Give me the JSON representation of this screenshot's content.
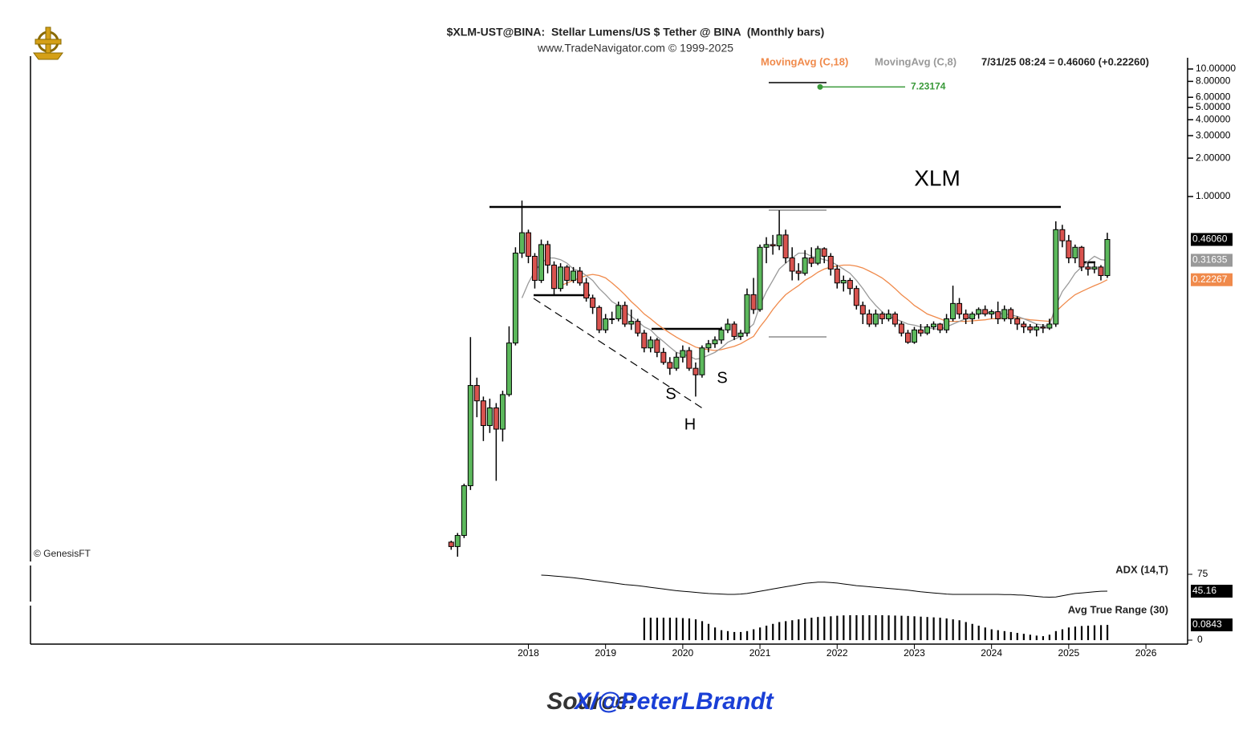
{
  "chart_data": {
    "type": "candlestick",
    "title": "$XLM-UST@BINA:  Stellar Lumens/US $ Tether @ BINA  (Monthly bars)",
    "subtitle": "www.TradeNavigator.com © 1999-2025",
    "status": "7/31/25 08:24 = 0.46060 (+0.22260)",
    "watermark": "© GenesisFT",
    "annotations": [
      "XLM",
      "S",
      "H",
      "S"
    ],
    "log_scale": true,
    "grid": false,
    "up_color": "#5cb85c",
    "down_color": "#d9534f",
    "xlim": [
      2011.55,
      2026.54
    ],
    "xticks": [
      2018,
      2019,
      2020,
      2021,
      2022,
      2023,
      2024,
      2025,
      2026
    ],
    "ylim": [
      0.001375,
      12.25
    ],
    "yticks": [
      {
        "value": 10,
        "label": "10.00000"
      },
      {
        "value": 8,
        "label": "8.00000"
      },
      {
        "value": 6,
        "label": "6.00000"
      },
      {
        "value": 5,
        "label": "5.00000"
      },
      {
        "value": 4,
        "label": "4.00000"
      },
      {
        "value": 3,
        "label": "3.00000"
      },
      {
        "value": 2,
        "label": "2.00000"
      },
      {
        "value": 1,
        "label": "1.00000"
      }
    ],
    "resistance": 0.828,
    "target": {
      "value": 7.23174,
      "color": "#3a9a3a"
    },
    "last_label": "0.46060",
    "x": [
      2017,
      2017.083,
      2017.167,
      2017.25,
      2017.333,
      2017.417,
      2017.5,
      2017.583,
      2017.667,
      2017.75,
      2017.833,
      2017.917,
      2018,
      2018.083,
      2018.167,
      2018.25,
      2018.333,
      2018.417,
      2018.5,
      2018.583,
      2018.667,
      2018.75,
      2018.833,
      2018.917,
      2019,
      2019.083,
      2019.167,
      2019.25,
      2019.333,
      2019.417,
      2019.5,
      2019.583,
      2019.667,
      2019.75,
      2019.833,
      2019.917,
      2020,
      2020.083,
      2020.167,
      2020.25,
      2020.333,
      2020.417,
      2020.5,
      2020.583,
      2020.667,
      2020.75,
      2020.833,
      2020.917,
      2021,
      2021.083,
      2021.167,
      2021.25,
      2021.333,
      2021.417,
      2021.5,
      2021.583,
      2021.667,
      2021.75,
      2021.833,
      2021.917,
      2022,
      2022.083,
      2022.167,
      2022.25,
      2022.333,
      2022.417,
      2022.5,
      2022.583,
      2022.667,
      2022.75,
      2022.833,
      2022.917,
      2023,
      2023.083,
      2023.167,
      2023.25,
      2023.333,
      2023.417,
      2023.5,
      2023.583,
      2023.667,
      2023.75,
      2023.833,
      2023.917,
      2024,
      2024.083,
      2024.167,
      2024.25,
      2024.333,
      2024.417,
      2024.5,
      2024.583,
      2024.667,
      2024.75,
      2024.833,
      2024.917,
      2025,
      2025.083,
      2025.167,
      2025.25,
      2025.333,
      2025.417,
      2025.5
    ],
    "ohlc": [
      [
        0.00195,
        0.002,
        0.0017,
        0.0018
      ],
      [
        0.0018,
        0.0023,
        0.0015,
        0.0022
      ],
      [
        0.0022,
        0.0056,
        0.0021,
        0.0054
      ],
      [
        0.0054,
        0.079,
        0.005,
        0.033
      ],
      [
        0.033,
        0.038,
        0.0186,
        0.025
      ],
      [
        0.025,
        0.027,
        0.0121,
        0.016
      ],
      [
        0.016,
        0.026,
        0.014,
        0.022
      ],
      [
        0.022,
        0.024,
        0.0059,
        0.015
      ],
      [
        0.015,
        0.03,
        0.012,
        0.028
      ],
      [
        0.028,
        0.096,
        0.027,
        0.071
      ],
      [
        0.071,
        0.4,
        0.068,
        0.36
      ],
      [
        0.36,
        0.93,
        0.33,
        0.52
      ],
      [
        0.52,
        0.55,
        0.3,
        0.34
      ],
      [
        0.34,
        0.36,
        0.19,
        0.22
      ],
      [
        0.22,
        0.46,
        0.21,
        0.42
      ],
      [
        0.42,
        0.45,
        0.25,
        0.29
      ],
      [
        0.29,
        0.31,
        0.17,
        0.19
      ],
      [
        0.19,
        0.3,
        0.18,
        0.28
      ],
      [
        0.28,
        0.29,
        0.2,
        0.22
      ],
      [
        0.22,
        0.28,
        0.21,
        0.26
      ],
      [
        0.26,
        0.28,
        0.2,
        0.21
      ],
      [
        0.21,
        0.23,
        0.15,
        0.16
      ],
      [
        0.16,
        0.17,
        0.12,
        0.135
      ],
      [
        0.135,
        0.14,
        0.085,
        0.09
      ],
      [
        0.09,
        0.12,
        0.085,
        0.11
      ],
      [
        0.11,
        0.125,
        0.1,
        0.11
      ],
      [
        0.11,
        0.15,
        0.105,
        0.14
      ],
      [
        0.14,
        0.15,
        0.095,
        0.1
      ],
      [
        0.1,
        0.13,
        0.09,
        0.105
      ],
      [
        0.105,
        0.11,
        0.08,
        0.085
      ],
      [
        0.085,
        0.09,
        0.06,
        0.065
      ],
      [
        0.065,
        0.08,
        0.06,
        0.075
      ],
      [
        0.075,
        0.078,
        0.055,
        0.06
      ],
      [
        0.06,
        0.065,
        0.048,
        0.05
      ],
      [
        0.05,
        0.055,
        0.04,
        0.045
      ],
      [
        0.045,
        0.06,
        0.043,
        0.055
      ],
      [
        0.055,
        0.068,
        0.05,
        0.062
      ],
      [
        0.062,
        0.066,
        0.043,
        0.045
      ],
      [
        0.045,
        0.05,
        0.027,
        0.04
      ],
      [
        0.04,
        0.068,
        0.038,
        0.065
      ],
      [
        0.065,
        0.075,
        0.06,
        0.07
      ],
      [
        0.07,
        0.08,
        0.065,
        0.075
      ],
      [
        0.075,
        0.095,
        0.07,
        0.09
      ],
      [
        0.09,
        0.11,
        0.085,
        0.1
      ],
      [
        0.1,
        0.105,
        0.075,
        0.08
      ],
      [
        0.08,
        0.09,
        0.075,
        0.085
      ],
      [
        0.085,
        0.19,
        0.08,
        0.17
      ],
      [
        0.17,
        0.23,
        0.12,
        0.13
      ],
      [
        0.13,
        0.42,
        0.125,
        0.4
      ],
      [
        0.4,
        0.48,
        0.3,
        0.42
      ],
      [
        0.42,
        0.5,
        0.35,
        0.41
      ],
      [
        0.41,
        0.78,
        0.38,
        0.5
      ],
      [
        0.5,
        0.55,
        0.3,
        0.33
      ],
      [
        0.33,
        0.4,
        0.22,
        0.26
      ],
      [
        0.26,
        0.3,
        0.22,
        0.25
      ],
      [
        0.25,
        0.38,
        0.24,
        0.33
      ],
      [
        0.33,
        0.4,
        0.28,
        0.3
      ],
      [
        0.3,
        0.41,
        0.29,
        0.39
      ],
      [
        0.39,
        0.4,
        0.3,
        0.34
      ],
      [
        0.34,
        0.36,
        0.24,
        0.27
      ],
      [
        0.27,
        0.29,
        0.19,
        0.21
      ],
      [
        0.21,
        0.24,
        0.18,
        0.22
      ],
      [
        0.22,
        0.23,
        0.17,
        0.19
      ],
      [
        0.19,
        0.2,
        0.13,
        0.14
      ],
      [
        0.14,
        0.15,
        0.1,
        0.12
      ],
      [
        0.12,
        0.13,
        0.095,
        0.1
      ],
      [
        0.1,
        0.13,
        0.095,
        0.12
      ],
      [
        0.12,
        0.125,
        0.1,
        0.11
      ],
      [
        0.11,
        0.13,
        0.105,
        0.12
      ],
      [
        0.12,
        0.125,
        0.095,
        0.1
      ],
      [
        0.1,
        0.105,
        0.08,
        0.085
      ],
      [
        0.085,
        0.09,
        0.07,
        0.072
      ],
      [
        0.072,
        0.095,
        0.07,
        0.09
      ],
      [
        0.09,
        0.1,
        0.08,
        0.085
      ],
      [
        0.085,
        0.1,
        0.082,
        0.095
      ],
      [
        0.095,
        0.105,
        0.09,
        0.1
      ],
      [
        0.1,
        0.102,
        0.085,
        0.09
      ],
      [
        0.09,
        0.12,
        0.085,
        0.11
      ],
      [
        0.11,
        0.2,
        0.105,
        0.145
      ],
      [
        0.145,
        0.16,
        0.11,
        0.12
      ],
      [
        0.12,
        0.13,
        0.1,
        0.11
      ],
      [
        0.11,
        0.125,
        0.1,
        0.12
      ],
      [
        0.12,
        0.135,
        0.11,
        0.13
      ],
      [
        0.13,
        0.14,
        0.115,
        0.12
      ],
      [
        0.12,
        0.13,
        0.11,
        0.125
      ],
      [
        0.125,
        0.15,
        0.1,
        0.11
      ],
      [
        0.11,
        0.14,
        0.105,
        0.13
      ],
      [
        0.13,
        0.135,
        0.1,
        0.11
      ],
      [
        0.11,
        0.115,
        0.09,
        0.1
      ],
      [
        0.1,
        0.105,
        0.085,
        0.095
      ],
      [
        0.095,
        0.1,
        0.085,
        0.09
      ],
      [
        0.09,
        0.1,
        0.08,
        0.095
      ],
      [
        0.095,
        0.1,
        0.085,
        0.093
      ],
      [
        0.093,
        0.11,
        0.09,
        0.1
      ],
      [
        0.1,
        0.64,
        0.095,
        0.55
      ],
      [
        0.55,
        0.6,
        0.4,
        0.45
      ],
      [
        0.45,
        0.5,
        0.3,
        0.33
      ],
      [
        0.33,
        0.42,
        0.3,
        0.4
      ],
      [
        0.4,
        0.41,
        0.26,
        0.28
      ],
      [
        0.28,
        0.3,
        0.24,
        0.27
      ],
      [
        0.27,
        0.3,
        0.25,
        0.28
      ],
      [
        0.28,
        0.29,
        0.22,
        0.24
      ],
      [
        0.24,
        0.52,
        0.23,
        0.4606
      ]
    ],
    "series": [
      {
        "name": "MovingAvg (C,18)",
        "color": "#f08a4b",
        "values": [
          null,
          null,
          null,
          null,
          null,
          null,
          null,
          null,
          null,
          null,
          null,
          null,
          null,
          null,
          null,
          null,
          null,
          0.2,
          0.21,
          0.22,
          0.23,
          0.24,
          0.245,
          0.24,
          0.23,
          0.21,
          0.19,
          0.17,
          0.15,
          0.135,
          0.12,
          0.11,
          0.1,
          0.092,
          0.085,
          0.079,
          0.074,
          0.07,
          0.066,
          0.064,
          0.063,
          0.062,
          0.063,
          0.065,
          0.067,
          0.07,
          0.075,
          0.08,
          0.095,
          0.11,
          0.13,
          0.15,
          0.17,
          0.185,
          0.2,
          0.22,
          0.235,
          0.255,
          0.27,
          0.28,
          0.285,
          0.29,
          0.29,
          0.285,
          0.275,
          0.26,
          0.245,
          0.23,
          0.21,
          0.19,
          0.17,
          0.155,
          0.14,
          0.13,
          0.12,
          0.115,
          0.11,
          0.105,
          0.105,
          0.105,
          0.105,
          0.106,
          0.107,
          0.108,
          0.11,
          0.11,
          0.112,
          0.113,
          0.112,
          0.11,
          0.108,
          0.107,
          0.106,
          0.105,
          0.125,
          0.14,
          0.155,
          0.17,
          0.18,
          0.19,
          0.2,
          0.21,
          0.22267
        ]
      },
      {
        "name": "MovingAvg (C,8)",
        "color": "#999999",
        "values": [
          null,
          null,
          null,
          null,
          null,
          null,
          null,
          null,
          null,
          null,
          null,
          0.16,
          0.21,
          0.26,
          0.3,
          0.33,
          0.33,
          0.32,
          0.3,
          0.27,
          0.26,
          0.24,
          0.22,
          0.19,
          0.17,
          0.15,
          0.14,
          0.125,
          0.115,
          0.105,
          0.095,
          0.09,
          0.08,
          0.073,
          0.066,
          0.06,
          0.058,
          0.056,
          0.053,
          0.054,
          0.057,
          0.06,
          0.065,
          0.072,
          0.076,
          0.08,
          0.09,
          0.1,
          0.14,
          0.18,
          0.22,
          0.27,
          0.3,
          0.33,
          0.36,
          0.36,
          0.34,
          0.33,
          0.32,
          0.31,
          0.29,
          0.27,
          0.25,
          0.22,
          0.19,
          0.16,
          0.14,
          0.125,
          0.115,
          0.11,
          0.105,
          0.1,
          0.098,
          0.095,
          0.094,
          0.092,
          0.091,
          0.095,
          0.1,
          0.105,
          0.11,
          0.115,
          0.12,
          0.122,
          0.124,
          0.121,
          0.12,
          0.118,
          0.115,
          0.11,
          0.105,
          0.1,
          0.098,
          0.097,
          0.14,
          0.18,
          0.21,
          0.25,
          0.28,
          0.31,
          0.34,
          0.32,
          0.31635
        ]
      }
    ],
    "indicators": [
      {
        "name": "ADX (14,T)",
        "type": "line",
        "ylim": [
          26.7,
          90.6
        ],
        "yticks": [
          75
        ],
        "values": [
          null,
          null,
          null,
          null,
          null,
          null,
          null,
          null,
          null,
          null,
          null,
          null,
          null,
          null,
          73.6,
          73,
          72,
          71,
          70,
          69,
          67.5,
          66,
          64.5,
          63,
          61.5,
          60,
          58.5,
          57,
          56,
          55,
          53.5,
          52,
          50.5,
          49,
          47.5,
          46,
          45,
          44,
          43,
          42,
          41,
          40.5,
          40,
          39.5,
          39.5,
          40,
          41,
          43,
          45,
          47,
          49,
          51,
          53,
          55,
          57,
          59,
          60,
          61,
          61,
          60.5,
          59.5,
          58,
          56.5,
          55,
          54,
          53,
          52,
          51,
          50,
          49,
          48,
          47,
          45.5,
          44,
          43,
          42,
          41,
          40,
          39.5,
          39.5,
          39.5,
          39.5,
          39.5,
          39.5,
          39.5,
          39.5,
          39,
          39,
          38.5,
          38,
          37,
          36,
          35,
          34.5,
          35,
          37,
          39,
          41,
          42,
          43,
          44,
          45,
          45.16
        ]
      },
      {
        "name": "Avg True Range (30)",
        "type": "bar",
        "ylim": [
          -0.022,
          0.191
        ],
        "yticks": [
          0
        ],
        "values": [
          null,
          null,
          null,
          null,
          null,
          null,
          null,
          null,
          null,
          null,
          null,
          null,
          null,
          null,
          null,
          null,
          null,
          null,
          null,
          null,
          null,
          null,
          null,
          null,
          null,
          null,
          null,
          null,
          null,
          null,
          0.124,
          0.124,
          0.124,
          0.124,
          0.124,
          0.124,
          0.122,
          0.12,
          0.115,
          0.105,
          0.09,
          0.07,
          0.055,
          0.05,
          0.045,
          0.045,
          0.05,
          0.06,
          0.07,
          0.08,
          0.09,
          0.1,
          0.105,
          0.11,
          0.115,
          0.12,
          0.124,
          0.128,
          0.13,
          0.132,
          0.135,
          0.137,
          0.138,
          0.138,
          0.138,
          0.138,
          0.138,
          0.138,
          0.137,
          0.136,
          0.135,
          0.134,
          0.132,
          0.13,
          0.128,
          0.126,
          0.124,
          0.12,
          0.115,
          0.11,
          0.1,
          0.09,
          0.08,
          0.07,
          0.06,
          0.055,
          0.05,
          0.045,
          0.04,
          0.035,
          0.03,
          0.025,
          0.022,
          0.03,
          0.05,
          0.06,
          0.07,
          0.075,
          0.078,
          0.08,
          0.082,
          0.083,
          0.0843
        ]
      }
    ]
  },
  "source": {
    "label": "Source:",
    "handle": "X/@PeterLBrandt"
  }
}
